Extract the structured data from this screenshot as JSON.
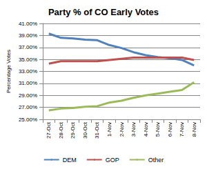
{
  "chart_data": {
    "type": "line",
    "title": "Party % of CO Early Votes",
    "y_label": "Percentage Votes",
    "categories": [
      "27-Oct",
      "28-Oct",
      "29-Oct",
      "30-Oct",
      "31-Oct",
      "1-Nov",
      "2-Nov",
      "3-Nov",
      "4-Nov",
      "5-Nov",
      "6-Nov",
      "7-Nov",
      "8-Nov"
    ],
    "series": [
      {
        "name": "DEM",
        "color": "#4f81bd",
        "values": [
          39.3,
          38.6,
          38.5,
          38.3,
          38.2,
          37.4,
          36.9,
          36.2,
          35.7,
          35.4,
          35.2,
          34.9,
          34.0
        ]
      },
      {
        "name": "GOP",
        "color": "#c0504d",
        "values": [
          34.3,
          34.7,
          34.7,
          34.7,
          34.7,
          34.9,
          35.1,
          35.3,
          35.3,
          35.3,
          35.3,
          35.3,
          34.9
        ]
      },
      {
        "name": "Other",
        "color": "#9bbb59",
        "values": [
          26.5,
          26.8,
          26.9,
          27.1,
          27.2,
          27.8,
          28.1,
          28.6,
          29.0,
          29.3,
          29.6,
          29.9,
          31.2
        ]
      }
    ],
    "ylim": [
      25,
      41
    ],
    "yticks": [
      {
        "value": 25,
        "label": "25.00%"
      },
      {
        "value": 27,
        "label": "27.00%"
      },
      {
        "value": 29,
        "label": "29.00%"
      },
      {
        "value": 31,
        "label": "31.00%"
      },
      {
        "value": 33,
        "label": "33.00%"
      },
      {
        "value": 35,
        "label": "35.00%"
      },
      {
        "value": 37,
        "label": "37.00%"
      },
      {
        "value": 39,
        "label": "39.00%"
      },
      {
        "value": 41,
        "label": "41.00%"
      }
    ],
    "grid": true,
    "legend": "bottom"
  }
}
